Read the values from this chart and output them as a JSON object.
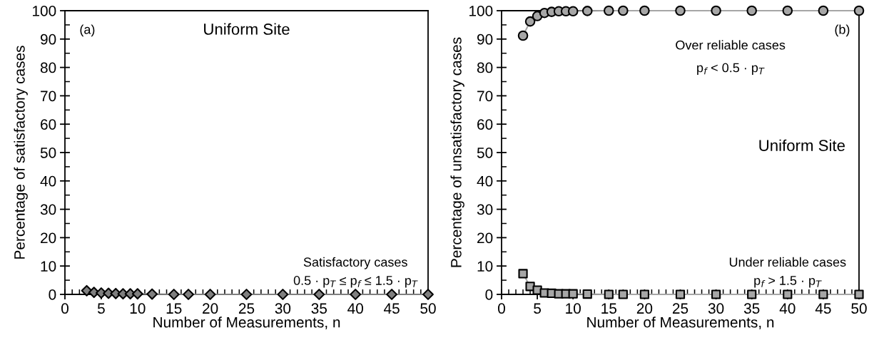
{
  "chart_data": [
    {
      "type": "line",
      "xlabel": "Number of Measurements, n",
      "ylabel": "Percentage of satisfactory cases",
      "x": [
        3,
        4,
        5,
        6,
        7,
        8,
        9,
        10,
        12,
        15,
        17,
        20,
        25,
        30,
        35,
        40,
        45,
        50
      ],
      "series": [
        {
          "color": "#7f7f7f",
          "marker": "diamond",
          "values": [
            1.3,
            0.7,
            0.5,
            0.4,
            0.3,
            0.2,
            0.2,
            0.2,
            0.1,
            0,
            0,
            0,
            0,
            0,
            0,
            0,
            0,
            0
          ]
        }
      ],
      "xlim": [
        0,
        50
      ],
      "xticks": [
        0,
        5,
        10,
        15,
        20,
        25,
        30,
        35,
        40,
        45,
        50
      ],
      "ylim": [
        0,
        100
      ],
      "yticks": [
        0,
        10,
        20,
        30,
        40,
        50,
        60,
        70,
        80,
        90,
        100
      ],
      "grid": false,
      "legend": false,
      "line_style": "solid",
      "annotations": [
        "(a)",
        "Uniform Site",
        "Satisfactory cases",
        "0.5 · p$_{T}$ ≤ p$_{f}$ ≤ 1.5 · p$_{T}$"
      ]
    },
    {
      "type": "line",
      "xlabel": "Number of Measurements, n",
      "ylabel": "Percentage of unsatisfactory cases",
      "x": [
        3,
        4,
        5,
        6,
        7,
        8,
        9,
        10,
        12,
        15,
        17,
        20,
        25,
        30,
        35,
        40,
        45,
        50
      ],
      "series": [
        {
          "color": "#a6a6a6",
          "marker": "circle",
          "values": [
            91.2,
            96.2,
            98.1,
            99.2,
            99.6,
            99.8,
            99.8,
            99.8,
            99.9,
            100,
            100,
            100,
            100,
            100,
            100,
            100,
            100,
            100
          ]
        },
        {
          "color": "#a6a6a6",
          "marker": "square",
          "values": [
            7.3,
            2.8,
            1.5,
            0.5,
            0.4,
            0.2,
            0.2,
            0.2,
            0.1,
            0,
            0,
            0,
            0,
            0,
            0,
            0,
            0,
            0
          ]
        }
      ],
      "xlim": [
        0,
        50
      ],
      "xticks": [
        0,
        5,
        10,
        15,
        20,
        25,
        30,
        35,
        40,
        45,
        50
      ],
      "ylim": [
        0,
        100
      ],
      "yticks": [
        0,
        10,
        20,
        30,
        40,
        50,
        60,
        70,
        80,
        90,
        100
      ],
      "grid": false,
      "legend": false,
      "line_style": "solid",
      "annotations": [
        "Over reliable cases",
        "p$_{f}$ < 0.5 · p$_{T}$",
        "(b)",
        "Uniform Site",
        "Under reliable cases",
        "p$_{f}$ > 1.5 · p$_{T}$"
      ]
    }
  ]
}
